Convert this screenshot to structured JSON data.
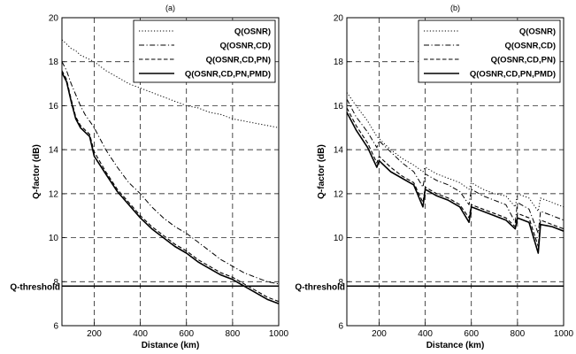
{
  "chart_data": [
    {
      "type": "line",
      "title": "(a)",
      "xlabel": "Distance (km)",
      "ylabel": "Q-factor (dB)",
      "xlim": [
        60,
        1000
      ],
      "ylim": [
        6,
        20
      ],
      "xticks": [
        200,
        400,
        600,
        800,
        1000
      ],
      "yticks": [
        6,
        8,
        10,
        12,
        14,
        16,
        18,
        20
      ],
      "grid": "dashed",
      "legend_position": "top-right",
      "threshold": {
        "label": "Q-threshold",
        "value": 7.8
      },
      "series": [
        {
          "name": "Q(OSNR)",
          "style": "dotted",
          "x": [
            60,
            80,
            100,
            120,
            140,
            160,
            180,
            200,
            250,
            300,
            350,
            400,
            450,
            500,
            550,
            600,
            650,
            700,
            750,
            800,
            850,
            900,
            950,
            1000
          ],
          "y": [
            19.0,
            18.8,
            18.6,
            18.5,
            18.3,
            18.2,
            18.1,
            18.0,
            17.6,
            17.3,
            17.0,
            16.8,
            16.6,
            16.4,
            16.2,
            16.0,
            15.9,
            15.7,
            15.6,
            15.4,
            15.3,
            15.2,
            15.1,
            15.0
          ]
        },
        {
          "name": "Q(OSNR,CD)",
          "style": "dashdot",
          "x": [
            60,
            80,
            100,
            120,
            140,
            160,
            180,
            200,
            250,
            300,
            350,
            400,
            450,
            500,
            550,
            600,
            650,
            700,
            750,
            800,
            850,
            900,
            950,
            1000
          ],
          "y": [
            18.0,
            17.6,
            17.0,
            16.5,
            16.0,
            15.6,
            15.3,
            15.0,
            14.0,
            13.2,
            12.5,
            12.0,
            11.4,
            10.9,
            10.5,
            10.2,
            9.8,
            9.4,
            9.0,
            8.7,
            8.4,
            8.2,
            8.0,
            7.9
          ]
        },
        {
          "name": "Q(OSNR,CD,PN)",
          "style": "dashed",
          "x": [
            60,
            80,
            100,
            120,
            140,
            160,
            180,
            200,
            250,
            300,
            350,
            400,
            450,
            500,
            550,
            600,
            650,
            700,
            750,
            800,
            850,
            900,
            950,
            1000
          ],
          "y": [
            17.6,
            17.2,
            16.3,
            15.5,
            15.1,
            14.9,
            14.7,
            13.9,
            13.0,
            12.2,
            11.6,
            11.0,
            10.5,
            10.1,
            9.7,
            9.4,
            9.0,
            8.7,
            8.4,
            8.2,
            7.9,
            7.6,
            7.3,
            7.1
          ]
        },
        {
          "name": "Q(OSNR,CD,PN,PMD)",
          "style": "solid",
          "x": [
            60,
            80,
            100,
            120,
            140,
            160,
            180,
            200,
            250,
            300,
            350,
            400,
            450,
            500,
            550,
            600,
            650,
            700,
            750,
            800,
            850,
            900,
            950,
            1000
          ],
          "y": [
            17.5,
            17.1,
            16.2,
            15.4,
            15.0,
            14.8,
            14.6,
            13.7,
            12.9,
            12.1,
            11.5,
            10.9,
            10.4,
            10.0,
            9.6,
            9.3,
            8.9,
            8.6,
            8.3,
            8.1,
            7.8,
            7.5,
            7.2,
            7.0
          ]
        }
      ]
    },
    {
      "type": "line",
      "title": "(b)",
      "xlabel": "Distance (km)",
      "ylabel": "Q-factor (dB)",
      "xlim": [
        60,
        1000
      ],
      "ylim": [
        6,
        20
      ],
      "xticks": [
        200,
        400,
        600,
        800,
        1000
      ],
      "yticks": [
        6,
        8,
        10,
        12,
        14,
        16,
        18,
        20
      ],
      "grid": "dashed",
      "legend_position": "top-right",
      "threshold": {
        "label": "Q-threshold",
        "value": 7.8
      },
      "series": [
        {
          "name": "Q(OSNR)",
          "style": "dotted",
          "x": [
            60,
            100,
            150,
            190,
            200,
            250,
            300,
            350,
            390,
            400,
            450,
            500,
            550,
            590,
            600,
            650,
            700,
            750,
            790,
            800,
            850,
            890,
            900,
            950,
            1000
          ],
          "y": [
            16.6,
            16.0,
            15.3,
            14.6,
            14.5,
            14.0,
            13.6,
            13.3,
            13.0,
            13.2,
            12.9,
            12.7,
            12.5,
            12.2,
            12.5,
            12.2,
            12.0,
            11.9,
            11.4,
            12.0,
            11.8,
            11.2,
            11.8,
            11.6,
            11.4
          ]
        },
        {
          "name": "Q(OSNR,CD)",
          "style": "dashdot",
          "x": [
            60,
            100,
            150,
            190,
            200,
            250,
            300,
            350,
            390,
            400,
            450,
            500,
            550,
            590,
            600,
            650,
            700,
            750,
            790,
            800,
            850,
            890,
            900,
            950,
            1000
          ],
          "y": [
            16.3,
            15.5,
            14.8,
            14.1,
            14.4,
            13.9,
            13.4,
            13.0,
            12.3,
            12.9,
            12.6,
            12.4,
            12.1,
            11.5,
            12.2,
            11.9,
            11.7,
            11.5,
            10.7,
            11.6,
            11.3,
            10.2,
            11.2,
            11.0,
            10.8
          ]
        },
        {
          "name": "Q(OSNR,CD,PN)",
          "style": "dashed",
          "x": [
            60,
            100,
            150,
            190,
            200,
            250,
            300,
            350,
            390,
            400,
            450,
            500,
            550,
            590,
            600,
            650,
            700,
            750,
            790,
            800,
            850,
            890,
            900,
            950,
            1000
          ],
          "y": [
            15.9,
            15.1,
            14.3,
            13.4,
            13.7,
            13.2,
            12.8,
            12.5,
            11.6,
            12.3,
            12.0,
            11.8,
            11.5,
            10.9,
            11.5,
            11.3,
            11.1,
            10.9,
            10.5,
            11.1,
            10.9,
            9.6,
            10.8,
            10.6,
            10.4
          ]
        },
        {
          "name": "Q(OSNR,CD,PN,PMD)",
          "style": "solid",
          "x": [
            60,
            100,
            150,
            190,
            200,
            250,
            300,
            350,
            390,
            400,
            450,
            500,
            550,
            590,
            600,
            650,
            700,
            750,
            790,
            800,
            850,
            890,
            900,
            950,
            1000
          ],
          "y": [
            15.7,
            14.9,
            14.1,
            13.2,
            13.5,
            13.0,
            12.7,
            12.4,
            11.4,
            12.2,
            11.9,
            11.7,
            11.4,
            10.7,
            11.4,
            11.2,
            11.0,
            10.8,
            10.4,
            10.9,
            10.7,
            9.3,
            10.6,
            10.5,
            10.3
          ]
        }
      ]
    }
  ]
}
